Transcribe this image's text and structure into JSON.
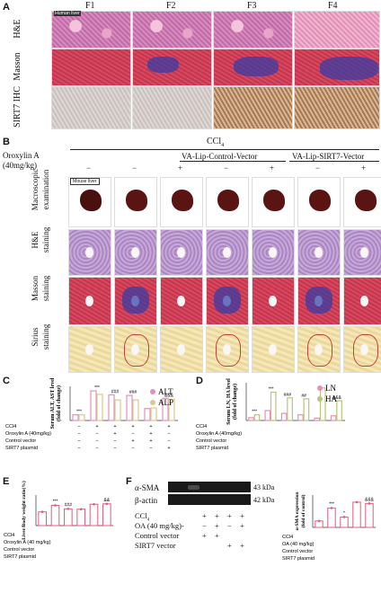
{
  "panelA": {
    "label": "A",
    "cols": [
      "F1",
      "F2",
      "F3",
      "F4"
    ],
    "rows": [
      "H&E",
      "Masson",
      "SIRT7 IHC"
    ],
    "scale_text": "Human liver"
  },
  "panelB": {
    "label": "B",
    "ccl4": "CCl",
    "ccl4_sub": "4",
    "oroxylin_label": "Oroxylin A",
    "oroxylin_dose": "(40mg/kg)",
    "signs": [
      "−",
      "−",
      "+",
      "−",
      "+",
      "−",
      "+"
    ],
    "group_ctrl": "VA-Lip-Control-Vector",
    "group_sirt7": "VA-Lip-SIRT7-Vector",
    "rows": [
      {
        "a": "Macroscopic",
        "b": "examination"
      },
      {
        "a": "H&E",
        "b": "staining"
      },
      {
        "a": "Masson",
        "b": "staining"
      },
      {
        "a": "Sirius",
        "b": "staining"
      }
    ],
    "mouse_liver": "Mouse liver"
  },
  "panelC": {
    "label": "C",
    "ylabel1": "Serum ALT, AST level",
    "ylabel2": "(fold of change)",
    "legend": [
      {
        "name": "ALT",
        "color": "#e78fb5"
      },
      {
        "name": "ALP",
        "color": "#d9c98c"
      }
    ],
    "rowlabels": [
      "CCl4",
      "Oroxylin A (40mg/kg)",
      "Control vector",
      "SIRT7 plasmid"
    ],
    "signs": [
      [
        "−",
        "+",
        "+",
        "+",
        "+",
        "+"
      ],
      [
        "−",
        "−",
        "+",
        "−",
        "+",
        "−"
      ],
      [
        "−",
        "−",
        "−",
        "+",
        "+",
        "−"
      ],
      [
        "−",
        "−",
        "−",
        "−",
        "−",
        "+"
      ]
    ],
    "stars": [
      "***",
      "***",
      "###",
      "###",
      "",
      "&&&"
    ]
  },
  "panelD": {
    "label": "D",
    "ylabel1": "Serum LN, HA level",
    "ylabel2": "(fold of change)",
    "legend": [
      {
        "name": "LN",
        "color": "#e78fb5"
      },
      {
        "name": "HA",
        "color": "#b9c37a"
      }
    ],
    "rowlabels": [
      "CCl4",
      "Oroxylin A (40mg/kg)",
      "Control vector",
      "SIRT7 plasmid"
    ],
    "stars": [
      "***",
      "***",
      "###",
      "##",
      "",
      "&&&"
    ]
  },
  "panelE": {
    "label": "E",
    "ylabel1": "Liver/Body weight ratio(%)",
    "rowlabels": [
      "CCl4",
      "Oroxylin A (40 mg/kg)",
      "Control vector",
      "SIRT7 plasmid"
    ],
    "stars": [
      "***",
      "###",
      "",
      "&&"
    ]
  },
  "panelF": {
    "label": "F",
    "blot1": "α-SMA",
    "blot2": "β-actin",
    "kda1": "43 kDa",
    "kda2": "42 kDa",
    "rows": [
      {
        "lbl": "CCl",
        "sub": "4",
        "vals": [
          "+",
          "+",
          "+",
          "+"
        ]
      },
      {
        "lbl": "OA (40 mg/kg)-",
        "sub": "",
        "vals": [
          "−",
          "+",
          "−",
          "+"
        ]
      },
      {
        "lbl": "Control vector",
        "sub": "",
        "vals": [
          "+",
          "+",
          "",
          ""
        ]
      },
      {
        "lbl": "SIRT7 vector",
        "sub": "",
        "vals": [
          "",
          "",
          "+",
          "+"
        ]
      }
    ],
    "ylabel1": "α-SMA expression",
    "ylabel2": "(fold of control)",
    "rowlabels": [
      "CCl4",
      "OA (40 mg/kg)",
      "Control vector",
      "SIRT7 plasmid"
    ],
    "stars": [
      "***",
      "*",
      "",
      "&&&"
    ]
  },
  "chart_data": [
    {
      "type": "bar",
      "title": "",
      "ylabel": "Serum ALT, AST level (fold of change)",
      "series": [
        {
          "name": "ALT",
          "values": [
            1.0,
            5.2,
            4.5,
            4.4,
            2.1,
            3.9
          ]
        },
        {
          "name": "ALP",
          "values": [
            1.0,
            4.6,
            3.6,
            3.6,
            2.2,
            3.7
          ]
        }
      ]
    },
    {
      "type": "bar",
      "title": "",
      "ylabel": "Serum LN, HA level (fold of change)",
      "series": [
        {
          "name": "LN",
          "values": [
            0.6,
            2.1,
            1.5,
            1.2,
            0.5,
            1.0
          ]
        },
        {
          "name": "HA",
          "values": [
            1.2,
            6.0,
            4.8,
            4.6,
            6.9,
            4.2
          ]
        }
      ]
    },
    {
      "type": "bar",
      "title": "",
      "ylabel": "Liver/Body weight ratio(%)",
      "series": [
        {
          "name": "",
          "values": [
            3.6,
            5.3,
            4.4,
            4.3,
            5.6,
            5.7
          ]
        }
      ]
    },
    {
      "type": "bar",
      "title": "",
      "ylabel": "α-SMA expression (fold of control)",
      "series": [
        {
          "name": "",
          "values": [
            1.0,
            3.0,
            1.6,
            3.9,
            3.7
          ]
        }
      ]
    }
  ]
}
